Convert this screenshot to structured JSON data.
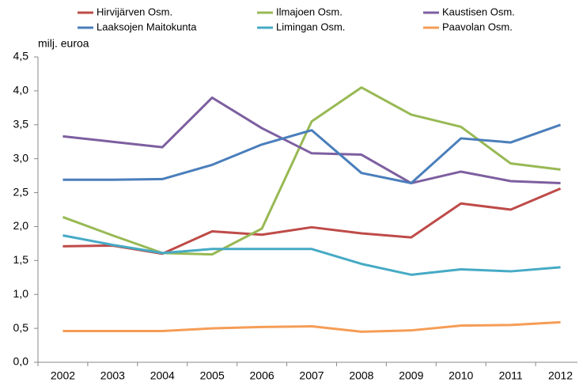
{
  "chart_data": {
    "type": "line",
    "y_axis_label": "milj. euroa",
    "categories": [
      "2002",
      "2003",
      "2004",
      "2005",
      "2006",
      "2007",
      "2008",
      "2009",
      "2010",
      "2011",
      "2012"
    ],
    "series": [
      {
        "name": "Hirvijärven Osm.",
        "color": "#be4b48",
        "values": [
          1.71,
          1.72,
          1.6,
          1.93,
          1.88,
          1.99,
          1.9,
          1.84,
          2.34,
          2.25,
          2.56
        ]
      },
      {
        "name": "Ilmajoen Osm.",
        "color": "#98b954",
        "values": [
          2.14,
          1.87,
          1.61,
          1.59,
          1.97,
          3.55,
          4.05,
          3.65,
          3.47,
          2.93,
          2.84
        ]
      },
      {
        "name": "Kaustisen Osm.",
        "color": "#7d5fa0",
        "values": [
          3.33,
          3.25,
          3.17,
          3.9,
          3.45,
          3.08,
          3.06,
          2.64,
          2.81,
          2.67,
          2.64
        ]
      },
      {
        "name": "Laaksojen Maitokunta",
        "color": "#4a7ebb",
        "values": [
          2.69,
          2.69,
          2.7,
          2.91,
          3.21,
          3.42,
          2.79,
          2.64,
          3.3,
          3.24,
          3.5
        ]
      },
      {
        "name": "Limingan Osm.",
        "color": "#46aac5",
        "values": [
          1.87,
          1.73,
          1.61,
          1.67,
          1.67,
          1.67,
          1.45,
          1.29,
          1.37,
          1.34,
          1.4
        ]
      },
      {
        "name": "Paavolan Osm.",
        "color": "#f59d56",
        "values": [
          0.46,
          0.46,
          0.46,
          0.5,
          0.52,
          0.53,
          0.45,
          0.47,
          0.54,
          0.55,
          0.59
        ]
      }
    ],
    "ylim": [
      0,
      4.5
    ],
    "yticks": [
      {
        "value": 0,
        "label": "0,0"
      },
      {
        "value": 0.5,
        "label": "0,5"
      },
      {
        "value": 1,
        "label": "1,0"
      },
      {
        "value": 1.5,
        "label": "1,5"
      },
      {
        "value": 2,
        "label": "2,0"
      },
      {
        "value": 2.5,
        "label": "2,5"
      },
      {
        "value": 3,
        "label": "3,0"
      },
      {
        "value": 3.5,
        "label": "3,5"
      },
      {
        "value": 4,
        "label": "4,0"
      },
      {
        "value": 4.5,
        "label": "4,5"
      }
    ]
  }
}
